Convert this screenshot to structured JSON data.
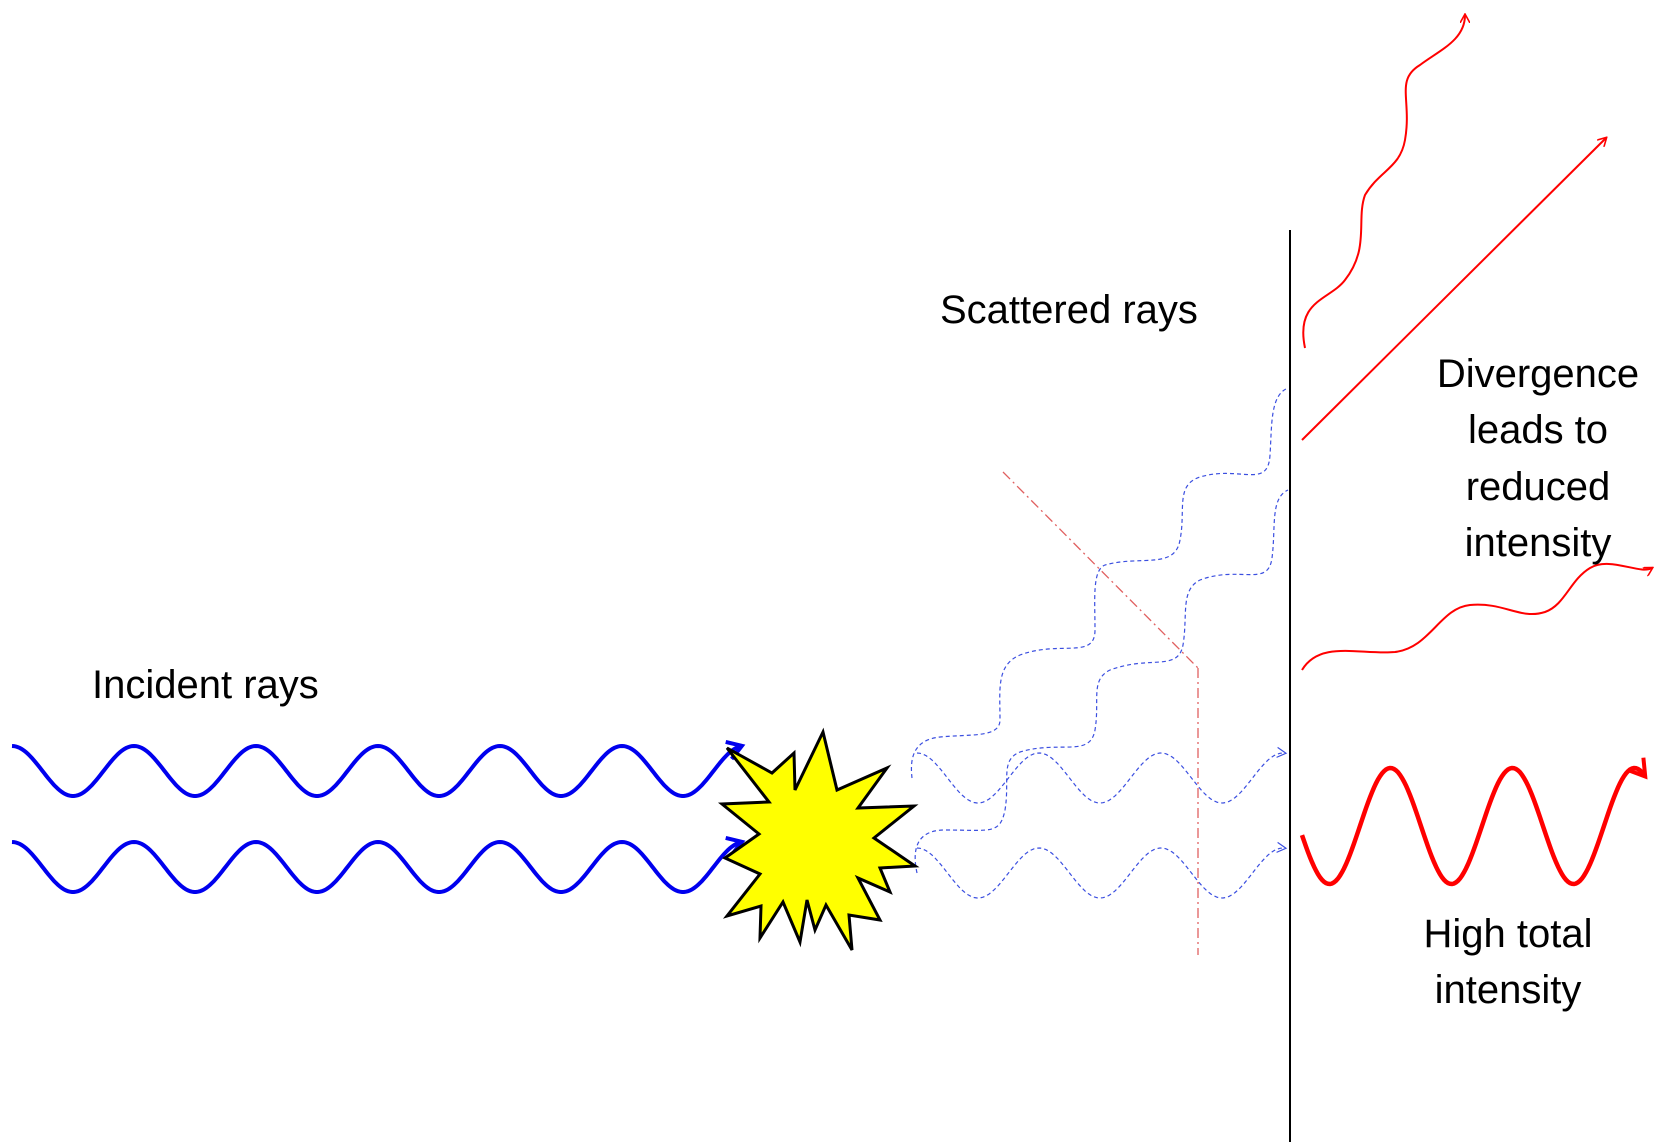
{
  "labels": {
    "incident": "Incident rays",
    "scattered": "Scattered rays",
    "divergence": [
      "Divergence",
      "leads to",
      "reduced",
      "intensity"
    ],
    "high": [
      "High total",
      "intensity"
    ]
  },
  "colors": {
    "incident": "#0000ee",
    "scattered": "#3b4fe0",
    "outgoing": "#ff0000",
    "guide": "#e06060",
    "star_fill": "#ffff00",
    "screen": "#000000"
  },
  "icons": {
    "scatterer": "explosion-burst-icon"
  }
}
